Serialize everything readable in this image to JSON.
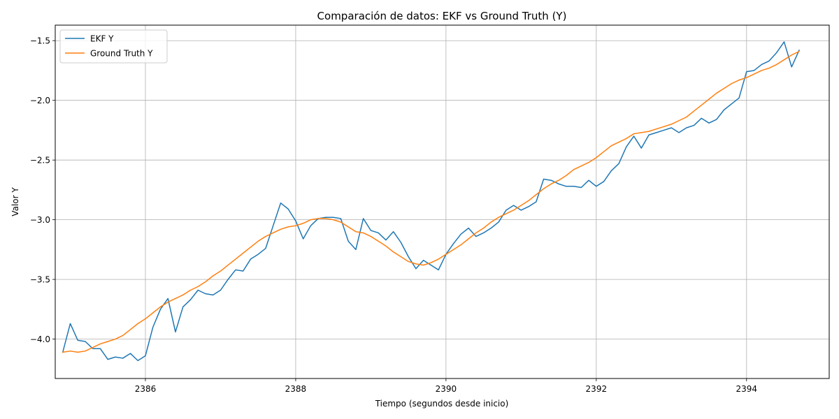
{
  "chart_data": {
    "type": "line",
    "title": "Comparación de datos: EKF vs Ground Truth (Y)",
    "xlabel": "Tiempo (segundos desde inicio)",
    "ylabel": "Valor Y",
    "xlim": [
      2384.8,
      2395.1
    ],
    "ylim": [
      -4.33,
      -1.37
    ],
    "xticks": [
      2386,
      2388,
      2390,
      2392,
      2394
    ],
    "xtick_labels": [
      "2386",
      "2388",
      "2390",
      "2392",
      "2394"
    ],
    "yticks": [
      -4.0,
      -3.5,
      -3.0,
      -2.5,
      -2.0,
      -1.5
    ],
    "ytick_labels": [
      "−4.0",
      "−3.5",
      "−3.0",
      "−2.5",
      "−2.0",
      "−1.5"
    ],
    "grid": true,
    "legend_position": "top-left",
    "series": [
      {
        "name": "EKF Y",
        "color": "#1f77b4",
        "x": [
          2384.9,
          2385.0,
          2385.1,
          2385.2,
          2385.3,
          2385.4,
          2385.5,
          2385.6,
          2385.7,
          2385.8,
          2385.9,
          2386.0,
          2386.1,
          2386.2,
          2386.3,
          2386.4,
          2386.5,
          2386.6,
          2386.7,
          2386.8,
          2386.9,
          2387.0,
          2387.1,
          2387.2,
          2387.3,
          2387.4,
          2387.5,
          2387.6,
          2387.7,
          2387.8,
          2387.9,
          2388.0,
          2388.1,
          2388.2,
          2388.3,
          2388.4,
          2388.5,
          2388.6,
          2388.7,
          2388.8,
          2388.9,
          2389.0,
          2389.1,
          2389.2,
          2389.3,
          2389.4,
          2389.5,
          2389.6,
          2389.7,
          2389.8,
          2389.9,
          2390.0,
          2390.1,
          2390.2,
          2390.3,
          2390.4,
          2390.5,
          2390.6,
          2390.7,
          2390.8,
          2390.9,
          2391.0,
          2391.1,
          2391.2,
          2391.3,
          2391.4,
          2391.5,
          2391.6,
          2391.7,
          2391.8,
          2391.9,
          2392.0,
          2392.1,
          2392.2,
          2392.3,
          2392.4,
          2392.5,
          2392.6,
          2392.7,
          2392.8,
          2392.9,
          2393.0,
          2393.1,
          2393.2,
          2393.3,
          2393.4,
          2393.5,
          2393.6,
          2393.7,
          2393.8,
          2393.9,
          2394.0,
          2394.1,
          2394.2,
          2394.3,
          2394.4,
          2394.5,
          2394.6,
          2394.7
        ],
        "y": [
          -4.11,
          -3.87,
          -4.01,
          -4.02,
          -4.08,
          -4.08,
          -4.17,
          -4.15,
          -4.16,
          -4.12,
          -4.18,
          -4.14,
          -3.9,
          -3.75,
          -3.66,
          -3.94,
          -3.73,
          -3.67,
          -3.59,
          -3.62,
          -3.63,
          -3.59,
          -3.5,
          -3.42,
          -3.43,
          -3.33,
          -3.29,
          -3.24,
          -3.05,
          -2.86,
          -2.91,
          -3.01,
          -3.16,
          -3.05,
          -2.99,
          -2.98,
          -2.98,
          -2.99,
          -3.18,
          -3.25,
          -2.99,
          -3.09,
          -3.11,
          -3.17,
          -3.1,
          -3.19,
          -3.31,
          -3.41,
          -3.34,
          -3.38,
          -3.42,
          -3.29,
          -3.2,
          -3.12,
          -3.07,
          -3.14,
          -3.11,
          -3.07,
          -3.02,
          -2.92,
          -2.88,
          -2.92,
          -2.89,
          -2.85,
          -2.66,
          -2.67,
          -2.7,
          -2.72,
          -2.72,
          -2.73,
          -2.67,
          -2.72,
          -2.68,
          -2.59,
          -2.53,
          -2.39,
          -2.3,
          -2.4,
          -2.29,
          -2.27,
          -2.25,
          -2.23,
          -2.27,
          -2.23,
          -2.21,
          -2.15,
          -2.19,
          -2.16,
          -2.08,
          -2.03,
          -1.98,
          -1.76,
          -1.75,
          -1.7,
          -1.67,
          -1.6,
          -1.51,
          -1.72,
          -1.58
        ]
      },
      {
        "name": "Ground Truth Y",
        "color": "#ff7f0e",
        "x": [
          2384.9,
          2385.0,
          2385.1,
          2385.2,
          2385.3,
          2385.4,
          2385.5,
          2385.6,
          2385.7,
          2385.8,
          2385.9,
          2386.0,
          2386.1,
          2386.2,
          2386.3,
          2386.4,
          2386.5,
          2386.6,
          2386.7,
          2386.8,
          2386.9,
          2387.0,
          2387.1,
          2387.2,
          2387.3,
          2387.4,
          2387.5,
          2387.6,
          2387.7,
          2387.8,
          2387.9,
          2388.0,
          2388.1,
          2388.2,
          2388.3,
          2388.4,
          2388.5,
          2388.6,
          2388.7,
          2388.8,
          2388.9,
          2389.0,
          2389.1,
          2389.2,
          2389.3,
          2389.4,
          2389.5,
          2389.6,
          2389.7,
          2389.8,
          2389.9,
          2390.0,
          2390.1,
          2390.2,
          2390.3,
          2390.4,
          2390.5,
          2390.6,
          2390.7,
          2390.8,
          2390.9,
          2391.0,
          2391.1,
          2391.2,
          2391.3,
          2391.4,
          2391.5,
          2391.6,
          2391.7,
          2391.8,
          2391.9,
          2392.0,
          2392.1,
          2392.2,
          2392.3,
          2392.4,
          2392.5,
          2392.6,
          2392.7,
          2392.8,
          2392.9,
          2393.0,
          2393.1,
          2393.2,
          2393.3,
          2393.4,
          2393.5,
          2393.6,
          2393.7,
          2393.8,
          2393.9,
          2394.0,
          2394.1,
          2394.2,
          2394.3,
          2394.4,
          2394.5,
          2394.6,
          2394.7
        ],
        "y": [
          -4.11,
          -4.1,
          -4.11,
          -4.1,
          -4.07,
          -4.04,
          -4.02,
          -4.0,
          -3.97,
          -3.92,
          -3.87,
          -3.83,
          -3.78,
          -3.73,
          -3.69,
          -3.66,
          -3.63,
          -3.59,
          -3.56,
          -3.52,
          -3.47,
          -3.43,
          -3.38,
          -3.33,
          -3.28,
          -3.23,
          -3.18,
          -3.14,
          -3.11,
          -3.08,
          -3.06,
          -3.05,
          -3.03,
          -3.0,
          -2.99,
          -2.99,
          -3.0,
          -3.02,
          -3.06,
          -3.1,
          -3.11,
          -3.14,
          -3.18,
          -3.22,
          -3.27,
          -3.31,
          -3.35,
          -3.37,
          -3.38,
          -3.36,
          -3.33,
          -3.29,
          -3.25,
          -3.21,
          -3.16,
          -3.11,
          -3.07,
          -3.02,
          -2.98,
          -2.95,
          -2.92,
          -2.88,
          -2.84,
          -2.79,
          -2.74,
          -2.7,
          -2.67,
          -2.63,
          -2.58,
          -2.55,
          -2.52,
          -2.48,
          -2.43,
          -2.38,
          -2.35,
          -2.32,
          -2.28,
          -2.27,
          -2.26,
          -2.24,
          -2.22,
          -2.2,
          -2.17,
          -2.14,
          -2.09,
          -2.04,
          -1.99,
          -1.94,
          -1.9,
          -1.86,
          -1.83,
          -1.81,
          -1.78,
          -1.75,
          -1.73,
          -1.7,
          -1.66,
          -1.62,
          -1.59
        ]
      }
    ]
  }
}
